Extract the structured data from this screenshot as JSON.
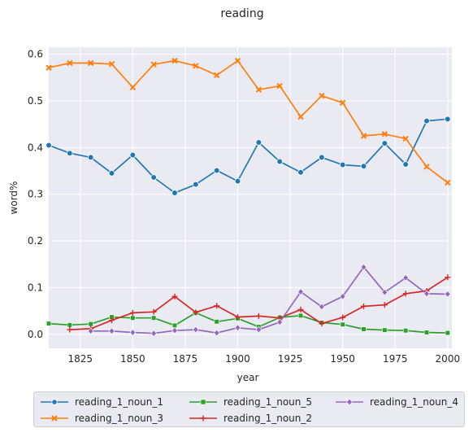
{
  "chart_data": {
    "type": "line",
    "title": "reading",
    "xlabel": "year",
    "ylabel": "word%",
    "xlim": [
      1810,
      2002
    ],
    "ylim": [
      -0.03,
      0.615
    ],
    "xticks": [
      "1825",
      "1850",
      "1875",
      "1900",
      "1925",
      "1950",
      "1975",
      "2000"
    ],
    "yticks": [
      "0.0",
      "0.1",
      "0.2",
      "0.3",
      "0.4",
      "0.5",
      "0.6"
    ],
    "grid": true,
    "legend_position": "bottom-center",
    "series": [
      {
        "name": "reading_1_noun_1",
        "color": "#1f77b4",
        "marker": "circle",
        "x": [
          1810,
          1820,
          1830,
          1840,
          1850,
          1860,
          1870,
          1880,
          1890,
          1900,
          1910,
          1920,
          1930,
          1940,
          1950,
          1960,
          1970,
          1980,
          1990,
          2000
        ],
        "y": [
          0.405,
          0.388,
          0.379,
          0.345,
          0.384,
          0.336,
          0.303,
          0.321,
          0.351,
          0.328,
          0.411,
          0.37,
          0.347,
          0.379,
          0.363,
          0.36,
          0.409,
          0.364,
          0.457,
          0.461
        ]
      },
      {
        "name": "reading_1_noun_3",
        "color": "#ff7f0e",
        "marker": "x",
        "x": [
          1810,
          1820,
          1830,
          1840,
          1850,
          1860,
          1870,
          1880,
          1890,
          1900,
          1910,
          1920,
          1930,
          1940,
          1950,
          1960,
          1970,
          1980,
          1990,
          2000
        ],
        "y": [
          0.571,
          0.581,
          0.581,
          0.579,
          0.529,
          0.578,
          0.586,
          0.575,
          0.555,
          0.586,
          0.524,
          0.532,
          0.466,
          0.511,
          0.496,
          0.425,
          0.429,
          0.419,
          0.359,
          0.325
        ]
      },
      {
        "name": "reading_1_noun_5",
        "color": "#2ca02c",
        "marker": "square",
        "x": [
          1810,
          1820,
          1830,
          1840,
          1850,
          1860,
          1870,
          1880,
          1890,
          1900,
          1910,
          1920,
          1930,
          1940,
          1950,
          1960,
          1970,
          1980,
          1990,
          2000
        ],
        "y": [
          0.023,
          0.02,
          0.022,
          0.037,
          0.035,
          0.035,
          0.019,
          0.046,
          0.027,
          0.034,
          0.016,
          0.036,
          0.04,
          0.025,
          0.021,
          0.011,
          0.009,
          0.008,
          0.004,
          0.003
        ]
      },
      {
        "name": "reading_1_noun_2",
        "color": "#d62728",
        "marker": "plus",
        "x": [
          1820,
          1830,
          1840,
          1850,
          1860,
          1870,
          1880,
          1890,
          1900,
          1910,
          1920,
          1930,
          1940,
          1950,
          1960,
          1970,
          1980,
          1990,
          2000
        ],
        "y": [
          0.01,
          0.012,
          0.03,
          0.046,
          0.048,
          0.081,
          0.047,
          0.061,
          0.037,
          0.039,
          0.035,
          0.053,
          0.023,
          0.036,
          0.06,
          0.063,
          0.087,
          0.093,
          0.122
        ]
      },
      {
        "name": "reading_1_noun_4",
        "color": "#9467bd",
        "marker": "diamond",
        "x": [
          1830,
          1840,
          1850,
          1860,
          1870,
          1880,
          1890,
          1900,
          1910,
          1920,
          1930,
          1940,
          1950,
          1960,
          1970,
          1980,
          1990,
          2000
        ],
        "y": [
          0.007,
          0.007,
          0.004,
          0.002,
          0.008,
          0.01,
          0.003,
          0.014,
          0.01,
          0.026,
          0.091,
          0.059,
          0.081,
          0.144,
          0.09,
          0.121,
          0.087,
          0.086
        ]
      }
    ]
  }
}
